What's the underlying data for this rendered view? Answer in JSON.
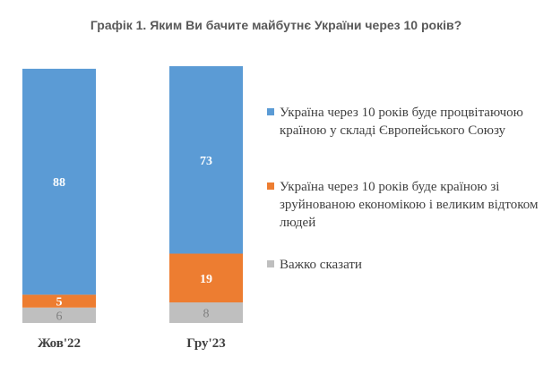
{
  "chart_data": {
    "type": "bar",
    "stacked": true,
    "title": "Графік 1. Яким Ви бачите майбутнє України через 10 років?",
    "categories": [
      "Жов'22",
      "Гру'23"
    ],
    "series": [
      {
        "name": "Важко сказати",
        "values": [
          6,
          8
        ],
        "color": "#bfbfbf"
      },
      {
        "name": "Україна через 10 років буде країною зі зруйнованою економікою і великим відтоком людей",
        "values": [
          5,
          19
        ],
        "color": "#ed7d31"
      },
      {
        "name": "Україна через 10 років буде процвітаючою країною у складі Європейського Союзу",
        "values": [
          88,
          73
        ],
        "color": "#5b9bd5"
      }
    ],
    "ylim": [
      0,
      100
    ],
    "grid": false,
    "legend_position": "right"
  },
  "legend": [
    {
      "label": "Україна через 10 років буде процвітаючою країною у складі Європейського Союзу",
      "color": "#5b9bd5"
    },
    {
      "label": "Україна через 10 років буде країною зі зруйнованою економікою і великим відтоком людей",
      "color": "#ed7d31"
    },
    {
      "label": "Важко сказати",
      "color": "#bfbfbf"
    }
  ]
}
